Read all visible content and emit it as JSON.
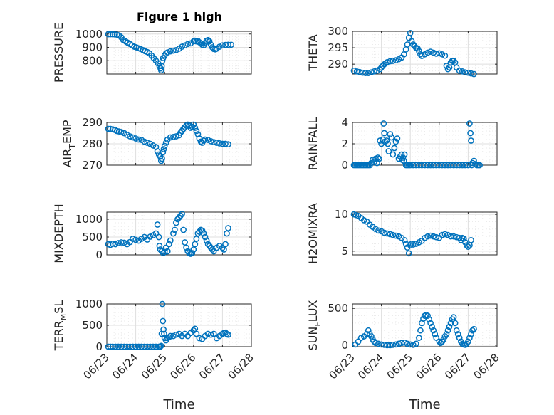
{
  "figure_title": "Figure 1 high",
  "x_tick_labels": [
    "06/23",
    "06/24",
    "06/25",
    "06/26",
    "06/27",
    "06/28"
  ],
  "x_label": "Time",
  "chart_data": [
    {
      "type": "scatter",
      "name": "pressure",
      "title": "Figure 1 high",
      "ylabel_parts": [
        "PRESSURE"
      ],
      "ylim": [
        700,
        1020
      ],
      "yticks": [
        800,
        900,
        1000
      ],
      "xlim": [
        0,
        5
      ],
      "xlabel": "",
      "x": [
        0.05,
        0.12,
        0.2,
        0.28,
        0.35,
        0.42,
        0.5,
        0.57,
        0.65,
        0.72,
        0.8,
        0.87,
        0.95,
        1.02,
        1.1,
        1.17,
        1.25,
        1.32,
        1.4,
        1.47,
        1.55,
        1.62,
        1.7,
        1.77,
        1.82,
        1.86,
        1.88,
        1.9,
        1.92,
        1.95,
        2.0,
        2.05,
        2.1,
        2.2,
        2.3,
        2.4,
        2.5,
        2.6,
        2.7,
        2.8,
        2.9,
        3.0,
        3.05,
        3.1,
        3.15,
        3.2,
        3.25,
        3.3,
        3.35,
        3.4,
        3.45,
        3.5,
        3.55,
        3.6,
        3.65,
        3.7,
        3.75,
        3.8,
        3.9,
        4.0,
        4.1,
        4.2,
        4.3
      ],
      "y": [
        998,
        998,
        998,
        997,
        995,
        990,
        975,
        955,
        945,
        935,
        925,
        915,
        905,
        900,
        893,
        888,
        880,
        872,
        865,
        855,
        838,
        820,
        800,
        780,
        760,
        742,
        728,
        760,
        800,
        820,
        840,
        855,
        862,
        870,
        875,
        880,
        890,
        905,
        915,
        925,
        930,
        945,
        950,
        945,
        948,
        938,
        930,
        920,
        915,
        932,
        950,
        955,
        945,
        920,
        900,
        888,
        885,
        890,
        905,
        915,
        918,
        920,
        920
      ]
    },
    {
      "type": "scatter",
      "name": "theta",
      "ylabel_parts": [
        "THETA"
      ],
      "ylim": [
        287,
        300
      ],
      "yticks": [
        290,
        295,
        300
      ],
      "xlim": [
        0,
        5
      ],
      "xlabel": "",
      "x": [
        0.05,
        0.15,
        0.25,
        0.35,
        0.45,
        0.55,
        0.65,
        0.75,
        0.85,
        0.95,
        1.0,
        1.05,
        1.1,
        1.15,
        1.2,
        1.3,
        1.4,
        1.5,
        1.6,
        1.7,
        1.78,
        1.85,
        1.9,
        1.95,
        2.0,
        2.05,
        2.1,
        2.15,
        2.2,
        2.25,
        2.3,
        2.35,
        2.4,
        2.5,
        2.6,
        2.7,
        2.8,
        2.9,
        3.0,
        3.1,
        3.2,
        3.25,
        3.3,
        3.35,
        3.4,
        3.45,
        3.5,
        3.55,
        3.6,
        3.7,
        3.8,
        3.9,
        4.0,
        4.1,
        4.2
      ],
      "y": [
        288,
        287.8,
        287.6,
        287.4,
        287.3,
        287.3,
        287.5,
        287.8,
        288,
        288.5,
        289,
        289.5,
        290,
        290.3,
        290.6,
        290.9,
        291.0,
        291.2,
        291.5,
        292,
        293,
        294.5,
        296,
        298,
        299.5,
        297,
        296,
        295.5,
        295,
        294.8,
        294,
        293,
        292.5,
        293,
        293.5,
        293.8,
        293.5,
        293.2,
        293.3,
        293,
        292.6,
        289.5,
        288.5,
        289,
        290.5,
        291,
        291,
        290.5,
        289,
        288,
        287.8,
        287.5,
        287.4,
        287.2,
        287
      ]
    },
    {
      "type": "scatter",
      "name": "air_temp",
      "ylabel_parts": [
        "AIR",
        "T",
        "EMP"
      ],
      "ylim": [
        270,
        290
      ],
      "yticks": [
        270,
        280,
        290
      ],
      "xlim": [
        0,
        5
      ],
      "xlabel": "",
      "x": [
        0.05,
        0.12,
        0.2,
        0.28,
        0.35,
        0.42,
        0.5,
        0.6,
        0.7,
        0.8,
        0.9,
        1.0,
        1.1,
        1.2,
        1.3,
        1.4,
        1.5,
        1.6,
        1.7,
        1.75,
        1.8,
        1.85,
        1.88,
        1.91,
        1.94,
        1.97,
        2.0,
        2.05,
        2.1,
        2.2,
        2.3,
        2.4,
        2.5,
        2.55,
        2.6,
        2.65,
        2.7,
        2.75,
        2.8,
        2.85,
        2.9,
        2.95,
        3.0,
        3.05,
        3.1,
        3.15,
        3.2,
        3.25,
        3.3,
        3.35,
        3.4,
        3.5,
        3.6,
        3.7,
        3.8,
        3.9,
        4.0,
        4.1,
        4.2
      ],
      "y": [
        287,
        287,
        286.8,
        286.5,
        286,
        285.8,
        285.5,
        285,
        284.2,
        283.5,
        283,
        282.5,
        282,
        281.8,
        281,
        280.5,
        280,
        279.2,
        278.5,
        276.5,
        275,
        274,
        272,
        273,
        276,
        277.5,
        279,
        280.5,
        282,
        283,
        283.2,
        283.5,
        284,
        285.2,
        286,
        287,
        287.8,
        288.5,
        289,
        288.5,
        287.5,
        288,
        289,
        287.5,
        286,
        284.5,
        282.5,
        281,
        280.5,
        281.5,
        282,
        281.8,
        281.2,
        280.8,
        280.5,
        280.2,
        280,
        280,
        279.8
      ]
    },
    {
      "type": "scatter",
      "name": "rainfall",
      "ylabel_parts": [
        "RAINFALL"
      ],
      "ylim": [
        0,
        4
      ],
      "yticks": [
        0,
        2,
        4
      ],
      "xlim": [
        0,
        5
      ],
      "xlabel": "",
      "x": [
        0.05,
        0.1,
        0.15,
        0.2,
        0.25,
        0.3,
        0.35,
        0.4,
        0.45,
        0.5,
        0.55,
        0.6,
        0.65,
        0.7,
        0.75,
        0.8,
        0.85,
        0.88,
        0.92,
        0.95,
        1.0,
        1.05,
        1.08,
        1.1,
        1.12,
        1.18,
        1.22,
        1.25,
        1.3,
        1.35,
        1.4,
        1.45,
        1.5,
        1.55,
        1.6,
        1.65,
        1.7,
        1.72,
        1.75,
        1.78,
        1.8,
        1.85,
        1.9,
        1.95,
        2.0,
        2.1,
        2.2,
        2.3,
        2.4,
        2.5,
        2.6,
        2.7,
        2.8,
        2.9,
        3.0,
        3.1,
        3.2,
        3.3,
        3.4,
        3.5,
        3.6,
        3.7,
        3.8,
        3.9,
        4.0,
        4.05,
        4.08,
        4.1,
        4.12,
        4.15,
        4.2,
        4.25,
        4.3,
        4.35,
        4.4
      ],
      "y": [
        0,
        0,
        0,
        0,
        0,
        0,
        0,
        0,
        0,
        0,
        0,
        0,
        0.2,
        0.5,
        0.3,
        0.6,
        0.2,
        0.7,
        0.6,
        2.3,
        2.0,
        2.4,
        3.9,
        3.0,
        2.2,
        2.3,
        2.0,
        1.3,
        2.9,
        2.6,
        1.0,
        1.6,
        2.2,
        2.5,
        0.6,
        0.8,
        1.0,
        0.5,
        0.7,
        0.4,
        1.0,
        0,
        0,
        0,
        0,
        0,
        0,
        0,
        0,
        0,
        0,
        0,
        0,
        0,
        0,
        0,
        0,
        0,
        0,
        0,
        0,
        0,
        0,
        0,
        0,
        3.9,
        3.0,
        2.3,
        0,
        0.2,
        0.4,
        0.1,
        0,
        0,
        0
      ]
    },
    {
      "type": "scatter",
      "name": "mixdepth",
      "ylabel_parts": [
        "MIXDEPTH"
      ],
      "ylim": [
        0,
        1200
      ],
      "yticks": [
        0,
        500,
        1000
      ],
      "xlim": [
        0,
        5
      ],
      "xlabel": "",
      "x": [
        0.05,
        0.12,
        0.2,
        0.3,
        0.4,
        0.5,
        0.6,
        0.7,
        0.8,
        0.9,
        1.0,
        1.1,
        1.2,
        1.3,
        1.4,
        1.5,
        1.6,
        1.7,
        1.75,
        1.8,
        1.82,
        1.85,
        1.9,
        1.95,
        2.0,
        2.05,
        2.1,
        2.15,
        2.2,
        2.3,
        2.35,
        2.4,
        2.45,
        2.5,
        2.55,
        2.6,
        2.65,
        2.7,
        2.75,
        2.8,
        2.85,
        2.9,
        2.95,
        3.0,
        3.05,
        3.1,
        3.15,
        3.2,
        3.25,
        3.3,
        3.35,
        3.4,
        3.45,
        3.5,
        3.55,
        3.6,
        3.65,
        3.7,
        3.8,
        3.9,
        4.0,
        4.05,
        4.1,
        4.15,
        4.2
      ],
      "y": [
        300,
        280,
        310,
        300,
        330,
        350,
        340,
        300,
        360,
        450,
        420,
        400,
        450,
        500,
        430,
        510,
        550,
        600,
        850,
        500,
        250,
        150,
        100,
        50,
        80,
        200,
        100,
        300,
        400,
        600,
        700,
        900,
        1000,
        1050,
        1100,
        1150,
        700,
        350,
        200,
        100,
        50,
        30,
        50,
        150,
        300,
        450,
        600,
        650,
        700,
        680,
        600,
        500,
        400,
        300,
        250,
        200,
        150,
        100,
        200,
        250,
        200,
        150,
        300,
        600,
        750
      ]
    },
    {
      "type": "scatter",
      "name": "h2omixra",
      "ylabel_parts": [
        "H2OMIXRA"
      ],
      "ylim": [
        4.5,
        10.3
      ],
      "yticks": [
        5,
        10
      ],
      "xlim": [
        0,
        5
      ],
      "xlabel": "",
      "x": [
        0.05,
        0.12,
        0.2,
        0.3,
        0.4,
        0.5,
        0.6,
        0.7,
        0.8,
        0.9,
        1.0,
        1.1,
        1.2,
        1.3,
        1.4,
        1.5,
        1.6,
        1.7,
        1.8,
        1.85,
        1.9,
        1.95,
        2.0,
        2.05,
        2.1,
        2.2,
        2.3,
        2.4,
        2.5,
        2.6,
        2.7,
        2.8,
        2.9,
        3.0,
        3.1,
        3.2,
        3.3,
        3.4,
        3.5,
        3.6,
        3.7,
        3.75,
        3.8,
        3.85,
        3.9,
        3.95,
        4.0,
        4.05,
        4.1
      ],
      "y": [
        10,
        9.9,
        9.8,
        9.5,
        9.2,
        9,
        8.6,
        8.3,
        8,
        7.8,
        7.7,
        7.5,
        7.4,
        7.3,
        7.2,
        7.1,
        7,
        6.8,
        6.5,
        6,
        5.5,
        4.7,
        5.8,
        6,
        5.9,
        6,
        6.2,
        6.4,
        6.8,
        7,
        7.1,
        7,
        6.9,
        6.8,
        7.2,
        7.3,
        7.2,
        7,
        7,
        6.9,
        6.8,
        6.5,
        6.8,
        6.7,
        6.2,
        5.8,
        5.6,
        5.8,
        6.5
      ]
    },
    {
      "type": "scatter",
      "name": "terr_msl",
      "ylabel_parts": [
        "TERR",
        "M",
        "SL"
      ],
      "ylim": [
        0,
        1000
      ],
      "yticks": [
        0,
        500,
        1000
      ],
      "xlim": [
        0,
        5
      ],
      "xlabel": "Time",
      "x": [
        0.05,
        0.12,
        0.2,
        0.3,
        0.4,
        0.5,
        0.6,
        0.7,
        0.8,
        0.9,
        1.0,
        1.1,
        1.2,
        1.3,
        1.4,
        1.5,
        1.6,
        1.7,
        1.8,
        1.85,
        1.88,
        1.9,
        1.92,
        1.94,
        1.96,
        1.98,
        2.0,
        2.05,
        2.1,
        2.15,
        2.2,
        2.3,
        2.4,
        2.5,
        2.6,
        2.7,
        2.8,
        2.9,
        3.0,
        3.05,
        3.1,
        3.2,
        3.3,
        3.4,
        3.5,
        3.6,
        3.7,
        3.8,
        3.9,
        4.0,
        4.05,
        4.1,
        4.15,
        4.2
      ],
      "y": [
        0,
        0,
        0,
        0,
        0,
        0,
        0,
        0,
        0,
        0,
        0,
        0,
        0,
        0,
        0,
        0,
        0,
        0,
        0,
        0,
        20,
        300,
        1000,
        600,
        400,
        300,
        200,
        150,
        200,
        220,
        250,
        250,
        280,
        300,
        250,
        300,
        250,
        320,
        380,
        420,
        300,
        200,
        180,
        250,
        300,
        280,
        300,
        200,
        250,
        300,
        320,
        330,
        300,
        280
      ]
    },
    {
      "type": "scatter",
      "name": "sun_flux",
      "ylabel_parts": [
        "SUN",
        "F",
        "LUX"
      ],
      "ylim": [
        -20,
        560
      ],
      "yticks": [
        0,
        500
      ],
      "xlim": [
        0,
        5
      ],
      "xlabel": "Time",
      "x": [
        0.1,
        0.2,
        0.3,
        0.4,
        0.5,
        0.55,
        0.6,
        0.65,
        0.7,
        0.75,
        0.8,
        0.9,
        1.0,
        1.1,
        1.2,
        1.3,
        1.4,
        1.5,
        1.6,
        1.7,
        1.8,
        1.9,
        2.0,
        2.1,
        2.2,
        2.3,
        2.35,
        2.4,
        2.45,
        2.5,
        2.55,
        2.6,
        2.65,
        2.7,
        2.75,
        2.8,
        2.85,
        2.9,
        3.0,
        3.05,
        3.1,
        3.15,
        3.2,
        3.25,
        3.3,
        3.35,
        3.4,
        3.45,
        3.5,
        3.55,
        3.6,
        3.65,
        3.7,
        3.75,
        3.8,
        3.85,
        3.9,
        3.95,
        4.0,
        4.05,
        4.1,
        4.15,
        4.2
      ],
      "y": [
        10,
        50,
        100,
        120,
        150,
        200,
        150,
        120,
        80,
        50,
        30,
        20,
        10,
        5,
        0,
        0,
        5,
        10,
        20,
        30,
        35,
        20,
        10,
        5,
        20,
        100,
        200,
        300,
        360,
        400,
        410,
        400,
        350,
        300,
        250,
        200,
        150,
        100,
        50,
        30,
        50,
        80,
        120,
        150,
        200,
        250,
        300,
        350,
        380,
        300,
        200,
        150,
        100,
        50,
        20,
        10,
        5,
        20,
        50,
        100,
        150,
        200,
        220
      ]
    }
  ]
}
